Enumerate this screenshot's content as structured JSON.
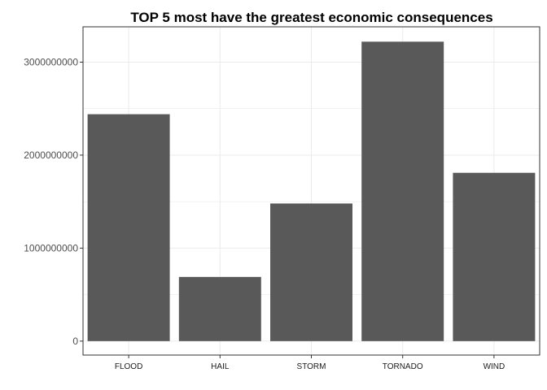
{
  "chart_data": {
    "type": "bar",
    "title": "TOP 5 most have the greatest economic consequences",
    "xlabel": "",
    "ylabel": "",
    "categories": [
      "FLOOD",
      "HAIL",
      "STORM",
      "TORNADO",
      "WIND"
    ],
    "values": [
      2440000000,
      690000000,
      1480000000,
      3220000000,
      1810000000
    ],
    "ylim": [
      -150000000,
      3380000000
    ],
    "yticks": [
      0,
      1000000000,
      2000000000,
      3000000000
    ],
    "ytick_labels": [
      "0",
      "1000000000",
      "2000000000",
      "3000000000"
    ],
    "grid": true,
    "legend": "none",
    "bar_color": "#595959",
    "grid_color": "#ebebeb",
    "panel_border_color": "#333333"
  }
}
